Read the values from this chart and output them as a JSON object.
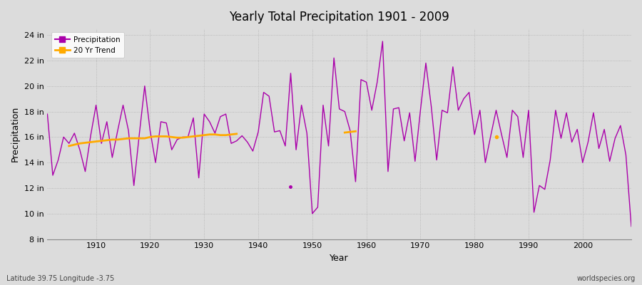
{
  "title": "Yearly Total Precipitation 1901 - 2009",
  "xlabel": "Year",
  "ylabel": "Precipitation",
  "lat_lon_label": "Latitude 39.75 Longitude -3.75",
  "watermark": "worldspecies.org",
  "bg_color": "#dcdcdc",
  "plot_bg_color": "#dcdcdc",
  "precip_color": "#aa00aa",
  "trend_color": "#ffaa00",
  "ylim": [
    8,
    24.5
  ],
  "yticks": [
    8,
    10,
    12,
    14,
    16,
    18,
    20,
    22,
    24
  ],
  "ytick_labels": [
    "8 in",
    "10 in",
    "12 in",
    "14 in",
    "16 in",
    "18 in",
    "20 in",
    "22 in",
    "24 in"
  ],
  "years": [
    1901,
    1902,
    1903,
    1904,
    1905,
    1906,
    1907,
    1908,
    1909,
    1910,
    1911,
    1912,
    1913,
    1914,
    1915,
    1916,
    1917,
    1918,
    1919,
    1920,
    1921,
    1922,
    1923,
    1924,
    1925,
    1926,
    1927,
    1928,
    1929,
    1930,
    1931,
    1932,
    1933,
    1934,
    1935,
    1936,
    1937,
    1938,
    1939,
    1940,
    1941,
    1942,
    1943,
    1944,
    1945,
    1946,
    1947,
    1948,
    1949,
    1950,
    1951,
    1952,
    1953,
    1954,
    1955,
    1956,
    1957,
    1958,
    1959,
    1960,
    1961,
    1962,
    1963,
    1964,
    1965,
    1966,
    1967,
    1968,
    1969,
    1970,
    1971,
    1972,
    1973,
    1974,
    1975,
    1976,
    1977,
    1978,
    1979,
    1980,
    1981,
    1982,
    1983,
    1984,
    1985,
    1986,
    1987,
    1988,
    1989,
    1990,
    1991,
    1992,
    1993,
    1994,
    1995,
    1996,
    1997,
    1998,
    1999,
    2000,
    2001,
    2002,
    2003,
    2004,
    2005,
    2006,
    2007,
    2008,
    2009
  ],
  "precip": [
    17.8,
    13.0,
    14.2,
    16.0,
    15.5,
    16.3,
    15.0,
    13.3,
    16.1,
    18.5,
    15.5,
    17.2,
    14.4,
    16.5,
    18.5,
    16.5,
    12.2,
    16.2,
    20.0,
    16.5,
    14.0,
    17.2,
    17.1,
    15.0,
    15.8,
    16.0,
    16.0,
    17.5,
    12.8,
    17.8,
    17.2,
    16.3,
    17.6,
    17.8,
    15.5,
    15.7,
    16.1,
    15.6,
    14.9,
    16.4,
    19.5,
    19.2,
    16.4,
    16.5,
    15.3,
    21.0,
    15.0,
    18.5,
    16.3,
    10.0,
    10.5,
    18.5,
    15.3,
    22.2,
    18.2,
    18.0,
    16.5,
    12.5,
    20.5,
    20.3,
    18.1,
    20.3,
    23.5,
    13.3,
    18.2,
    18.3,
    15.7,
    17.9,
    14.1,
    18.1,
    21.8,
    18.4,
    14.2,
    18.1,
    17.9,
    21.5,
    18.1,
    19.0,
    19.5,
    16.2,
    18.1,
    14.0,
    16.1,
    18.1,
    16.2,
    14.4,
    18.1,
    17.6,
    14.4,
    18.1,
    10.1,
    12.2,
    11.9,
    14.2,
    18.1,
    15.9,
    17.9,
    15.6,
    16.6,
    14.0,
    15.6,
    17.9,
    15.1,
    16.6,
    14.1,
    15.9,
    16.9,
    14.6,
    9.0
  ],
  "isolated_dot_year": 1946,
  "isolated_dot_val": 12.1,
  "trend_segment1_years": [
    1905,
    1906,
    1907,
    1908,
    1909,
    1910,
    1911,
    1912,
    1913,
    1914,
    1915,
    1916,
    1917,
    1918,
    1919,
    1920,
    1921,
    1922,
    1923,
    1924,
    1925,
    1926,
    1927,
    1928,
    1929,
    1930,
    1931,
    1932,
    1933,
    1934,
    1935,
    1936
  ],
  "trend_segment1_vals": [
    15.3,
    15.4,
    15.5,
    15.55,
    15.6,
    15.65,
    15.7,
    15.75,
    15.8,
    15.8,
    15.85,
    15.9,
    15.9,
    15.9,
    15.9,
    16.0,
    16.05,
    16.05,
    16.05,
    16.0,
    15.95,
    15.95,
    16.0,
    16.05,
    16.1,
    16.15,
    16.2,
    16.2,
    16.15,
    16.15,
    16.2,
    16.25
  ],
  "trend_segment2_years": [
    1956,
    1957,
    1958
  ],
  "trend_segment2_vals": [
    16.35,
    16.4,
    16.45
  ],
  "trend_segment3_years": [
    1984
  ],
  "trend_segment3_vals": [
    16.0
  ]
}
